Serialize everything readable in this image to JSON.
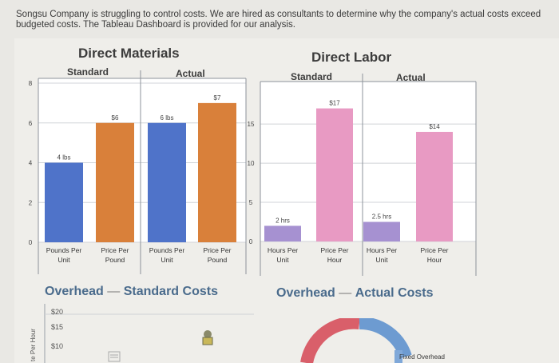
{
  "intro_text": "Songsu Company is struggling to control costs. We are hired as consultants to determine why the company's actual costs exceed budgeted costs. The Tableau Dashboard is provided for our analysis.",
  "direct_materials": {
    "title": "Direct Materials",
    "standard_label": "Standard",
    "actual_label": "Actual"
  },
  "direct_labor": {
    "title": "Direct Labor",
    "standard_label": "Standard",
    "actual_label": "Actual"
  },
  "overhead_standard": {
    "title": "Overhead",
    "subtitle": "Standard Costs",
    "y_ticks": [
      "$20",
      "$15",
      "$10"
    ],
    "y_axis_label": "te Per Hour"
  },
  "overhead_actual": {
    "title": "Overhead",
    "subtitle": "Actual Costs",
    "legend_label": "Fixed Overhead"
  },
  "colors": {
    "blue": "#4f73c9",
    "orange": "#d9803a",
    "pink": "#e89ac3",
    "purple": "#a691d1",
    "overhead_red": "#d95f6a",
    "overhead_blue": "#6d9bd1"
  },
  "chart_data": [
    {
      "type": "bar",
      "title": "Direct Materials",
      "categories": [
        "Pounds Per Unit",
        "Price Per Pound",
        "Pounds Per Unit",
        "Price Per Pound"
      ],
      "groups": [
        "Standard",
        "Standard",
        "Actual",
        "Actual"
      ],
      "values": [
        4,
        6,
        6,
        7
      ],
      "data_labels": [
        "4 lbs",
        "$6",
        "6 lbs",
        "$7"
      ],
      "ylim": [
        0,
        8
      ],
      "y_ticks": [
        0,
        2,
        4,
        6,
        8
      ]
    },
    {
      "type": "bar",
      "title": "Direct Labor",
      "categories": [
        "Hours Per Unit",
        "Price Per Hour",
        "Hours Per Unit",
        "Price Per Hour"
      ],
      "groups": [
        "Standard",
        "Standard",
        "Actual",
        "Actual"
      ],
      "values": [
        2,
        17,
        2.5,
        14
      ],
      "data_labels": [
        "2 hrs",
        "$17",
        "2.5 hrs",
        "$14"
      ],
      "ylim": [
        0,
        19
      ],
      "y_ticks": [
        0,
        5,
        10,
        15
      ]
    }
  ]
}
